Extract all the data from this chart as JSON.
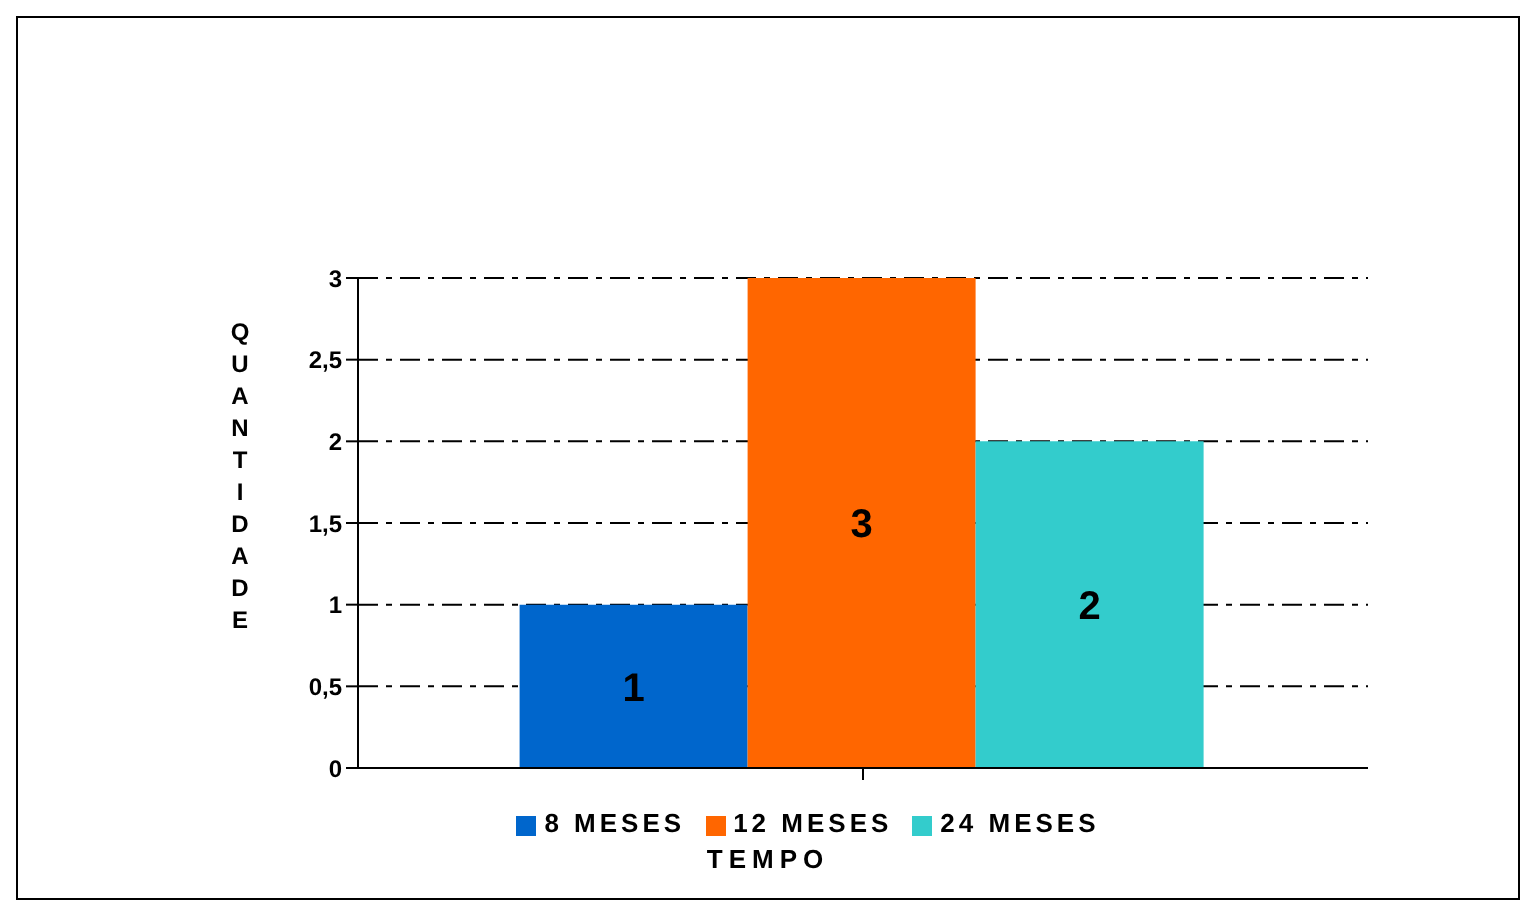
{
  "chart_data": {
    "type": "bar",
    "xlabel": "TEMPO",
    "ylabel": "QUANTIDADE",
    "categories": [
      null
    ],
    "series": [
      {
        "name": "8 MESES",
        "color": "#0066cc",
        "values": [
          1
        ]
      },
      {
        "name": "12 MESES",
        "color": "#ff6600",
        "values": [
          3
        ]
      },
      {
        "name": "24 MESES",
        "color": "#33cccc",
        "values": [
          2
        ]
      }
    ],
    "ylim": [
      0,
      3
    ],
    "yticks": [
      0,
      {
        "value": 0.5,
        "label": "0,5"
      },
      1,
      {
        "value": 1.5,
        "label": "1,5"
      },
      2,
      {
        "value": 2.5,
        "label": "2,5"
      },
      3
    ],
    "grid": "y",
    "legend": "bottom",
    "data_labels": true
  }
}
